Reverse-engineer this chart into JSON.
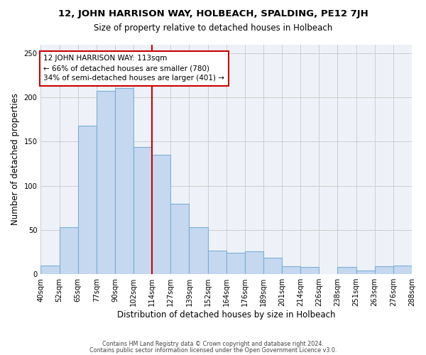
{
  "title": "12, JOHN HARRISON WAY, HOLBEACH, SPALDING, PE12 7JH",
  "subtitle": "Size of property relative to detached houses in Holbeach",
  "xlabel": "Distribution of detached houses by size in Holbeach",
  "ylabel": "Number of detached properties",
  "bar_labels": [
    "40sqm",
    "52sqm",
    "65sqm",
    "77sqm",
    "90sqm",
    "102sqm",
    "114sqm",
    "127sqm",
    "139sqm",
    "152sqm",
    "164sqm",
    "176sqm",
    "189sqm",
    "201sqm",
    "214sqm",
    "226sqm",
    "238sqm",
    "251sqm",
    "263sqm",
    "276sqm",
    "288sqm"
  ],
  "bar_values": [
    10,
    53,
    168,
    207,
    211,
    144,
    135,
    80,
    53,
    27,
    24,
    26,
    19,
    9,
    8,
    0,
    8,
    4,
    9,
    10
  ],
  "bar_color": "#c5d8f0",
  "bar_edge_color": "#7bafd4",
  "vline_color": "#cc0000",
  "annotation_text": "12 JOHN HARRISON WAY: 113sqm\n← 66% of detached houses are smaller (780)\n34% of semi-detached houses are larger (401) →",
  "ylim": [
    0,
    260
  ],
  "footer1": "Contains HM Land Registry data © Crown copyright and database right 2024.",
  "footer2": "Contains public sector information licensed under the Open Government Licence v3.0."
}
